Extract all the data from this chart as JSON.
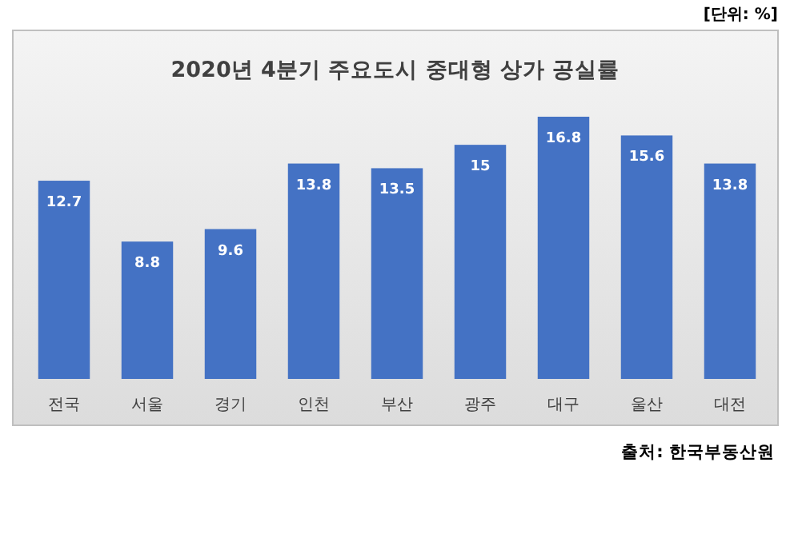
{
  "chart_data": {
    "type": "bar",
    "title": "2020년 4분기  주요도시 중대형 상가 공실률",
    "categories": [
      "전국",
      "서울",
      "경기",
      "인천",
      "부산",
      "광주",
      "대구",
      "울산",
      "대전"
    ],
    "values": [
      12.7,
      8.8,
      9.6,
      13.8,
      13.5,
      15,
      16.8,
      15.6,
      13.8
    ],
    "color": "#4472c4",
    "data_labels": true,
    "annotations": [
      "[단위: %]",
      "출처: 한국부동산원"
    ]
  }
}
